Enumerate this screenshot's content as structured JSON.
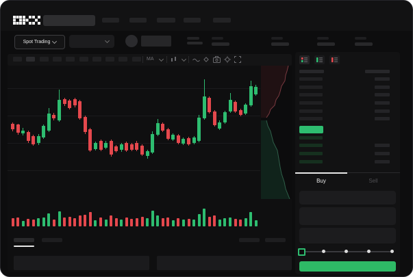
{
  "brand": {
    "logo_label": "OKX"
  },
  "colors": {
    "up_green": "#2ebd70",
    "down_red": "#e5484d",
    "buy_button_green": "#2eba66",
    "last_price_green": "#2ebd70",
    "panel_bg": "#131314",
    "accent_underline": "#e8e8e8"
  },
  "topbar": {
    "nav_placeholder_count": 5
  },
  "subheader": {
    "market_selector_label": "Spot Trading",
    "stat_group_count": 4
  },
  "chart_toolbar": {
    "timeframe_placeholder_count": 10,
    "ma_label": "MA",
    "icons": [
      "ma-dropdown",
      "candle-style-dropdown",
      "line-tool-icon",
      "draw-tool-icon",
      "camera-icon",
      "settings-icon",
      "fullscreen-icon"
    ]
  },
  "chart_data": {
    "type": "candlestick",
    "note": "No numeric axis labels visible; candle values normalized as percent from chart top (0=top, 100=bottom).",
    "up_color": "#2ebd70",
    "down_color": "#e5484d",
    "gridlines_pct": [
      16.5,
      36.5,
      56.5,
      76.5
    ],
    "candles": [
      {
        "o": 42.5,
        "c": 46.7,
        "h": 41.7,
        "l": 47.8,
        "dir": "down"
      },
      {
        "o": 43.0,
        "c": 49.2,
        "h": 42.5,
        "l": 50.5,
        "dir": "down"
      },
      {
        "o": 49.5,
        "c": 47.5,
        "h": 45.3,
        "l": 50.8,
        "dir": "up"
      },
      {
        "o": 48.7,
        "c": 55.0,
        "h": 47.5,
        "l": 56.5,
        "dir": "down"
      },
      {
        "o": 51.7,
        "c": 57.5,
        "h": 50.5,
        "l": 58.7,
        "dir": "down"
      },
      {
        "o": 56.5,
        "c": 51.5,
        "h": 50.0,
        "l": 58.0,
        "dir": "up"
      },
      {
        "o": 52.5,
        "c": 44.2,
        "h": 43.0,
        "l": 53.5,
        "dir": "up"
      },
      {
        "o": 47.5,
        "c": 35.0,
        "h": 30.8,
        "l": 48.5,
        "dir": "up"
      },
      {
        "o": 35.8,
        "c": 38.7,
        "h": 34.5,
        "l": 40.0,
        "dir": "down"
      },
      {
        "o": 40.0,
        "c": 25.0,
        "h": 17.5,
        "l": 41.0,
        "dir": "up"
      },
      {
        "o": 24.7,
        "c": 28.0,
        "h": 23.5,
        "l": 29.5,
        "dir": "down"
      },
      {
        "o": 25.3,
        "c": 30.8,
        "h": 24.5,
        "l": 32.0,
        "dir": "down"
      },
      {
        "o": 24.7,
        "c": 29.2,
        "h": 23.3,
        "l": 30.5,
        "dir": "down"
      },
      {
        "o": 25.8,
        "c": 38.3,
        "h": 25.0,
        "l": 39.5,
        "dir": "down"
      },
      {
        "o": 37.5,
        "c": 48.7,
        "h": 36.5,
        "l": 50.0,
        "dir": "down"
      },
      {
        "o": 46.7,
        "c": 62.0,
        "h": 45.5,
        "l": 63.0,
        "dir": "down"
      },
      {
        "o": 60.8,
        "c": 56.7,
        "h": 55.5,
        "l": 62.0,
        "dir": "up"
      },
      {
        "o": 55.0,
        "c": 61.3,
        "h": 54.0,
        "l": 62.5,
        "dir": "down"
      },
      {
        "o": 60.0,
        "c": 56.3,
        "h": 55.0,
        "l": 61.0,
        "dir": "up"
      },
      {
        "o": 55.0,
        "c": 65.0,
        "h": 54.0,
        "l": 66.5,
        "dir": "down"
      },
      {
        "o": 59.2,
        "c": 62.5,
        "h": 58.0,
        "l": 63.5,
        "dir": "down"
      },
      {
        "o": 61.7,
        "c": 57.5,
        "h": 56.5,
        "l": 63.0,
        "dir": "up"
      },
      {
        "o": 56.7,
        "c": 62.0,
        "h": 55.5,
        "l": 63.0,
        "dir": "down"
      },
      {
        "o": 57.5,
        "c": 61.3,
        "h": 56.5,
        "l": 62.3,
        "dir": "down"
      },
      {
        "o": 56.3,
        "c": 61.7,
        "h": 55.0,
        "l": 62.7,
        "dir": "down"
      },
      {
        "o": 58.7,
        "c": 65.0,
        "h": 57.5,
        "l": 66.0,
        "dir": "down"
      },
      {
        "o": 66.0,
        "c": 62.5,
        "h": 61.5,
        "l": 68.0,
        "dir": "up"
      },
      {
        "o": 63.5,
        "c": 50.0,
        "h": 48.0,
        "l": 64.5,
        "dir": "up"
      },
      {
        "o": 50.5,
        "c": 42.0,
        "h": 39.0,
        "l": 51.5,
        "dir": "up"
      },
      {
        "o": 42.5,
        "c": 47.5,
        "h": 41.5,
        "l": 48.5,
        "dir": "down"
      },
      {
        "o": 46.5,
        "c": 53.5,
        "h": 45.5,
        "l": 54.5,
        "dir": "down"
      },
      {
        "o": 54.0,
        "c": 50.5,
        "h": 49.5,
        "l": 55.0,
        "dir": "up"
      },
      {
        "o": 51.0,
        "c": 56.5,
        "h": 50.0,
        "l": 57.5,
        "dir": "down"
      },
      {
        "o": 57.0,
        "c": 53.5,
        "h": 52.5,
        "l": 58.0,
        "dir": "up"
      },
      {
        "o": 53.0,
        "c": 57.5,
        "h": 52.0,
        "l": 58.5,
        "dir": "down"
      },
      {
        "o": 56.5,
        "c": 52.5,
        "h": 51.5,
        "l": 57.5,
        "dir": "up"
      },
      {
        "o": 55.0,
        "c": 38.0,
        "h": 36.0,
        "l": 56.0,
        "dir": "up"
      },
      {
        "o": 38.5,
        "c": 22.5,
        "h": 10.0,
        "l": 39.5,
        "dir": "up"
      },
      {
        "o": 23.5,
        "c": 34.0,
        "h": 22.5,
        "l": 35.0,
        "dir": "down"
      },
      {
        "o": 33.5,
        "c": 43.5,
        "h": 32.5,
        "l": 44.5,
        "dir": "down"
      },
      {
        "o": 46.0,
        "c": 41.5,
        "h": 40.0,
        "l": 47.0,
        "dir": "up"
      },
      {
        "o": 41.5,
        "c": 34.0,
        "h": 33.0,
        "l": 42.5,
        "dir": "up"
      },
      {
        "o": 33.5,
        "c": 25.0,
        "h": 20.0,
        "l": 34.5,
        "dir": "up"
      },
      {
        "o": 26.5,
        "c": 33.5,
        "h": 25.5,
        "l": 34.5,
        "dir": "down"
      },
      {
        "o": 32.5,
        "c": 36.0,
        "h": 31.5,
        "l": 37.0,
        "dir": "down"
      },
      {
        "o": 35.0,
        "c": 28.5,
        "h": 27.5,
        "l": 36.0,
        "dir": "up"
      },
      {
        "o": 29.0,
        "c": 15.0,
        "h": 11.0,
        "l": 30.0,
        "dir": "up"
      },
      {
        "o": 21.0,
        "c": 15.5,
        "h": 14.0,
        "l": 22.0,
        "dir": "up"
      }
    ],
    "volume": [
      0.45,
      0.5,
      0.3,
      0.42,
      0.38,
      0.45,
      0.5,
      0.75,
      0.4,
      0.85,
      0.5,
      0.55,
      0.45,
      0.6,
      0.65,
      0.8,
      0.35,
      0.5,
      0.4,
      0.6,
      0.45,
      0.4,
      0.5,
      0.42,
      0.48,
      0.55,
      0.45,
      0.9,
      0.6,
      0.45,
      0.5,
      0.35,
      0.45,
      0.4,
      0.42,
      0.38,
      0.7,
      1.0,
      0.55,
      0.6,
      0.4,
      0.45,
      0.5,
      0.42,
      0.38,
      0.45,
      0.8,
      0.35
    ],
    "depth_overlay": {
      "asks_side": "top-red",
      "bids_side": "bottom-green"
    }
  },
  "order_book": {
    "view_toggles": [
      {
        "name": "book-both",
        "active": true
      },
      {
        "name": "book-bids-only",
        "active": false
      },
      {
        "name": "book-asks-only",
        "active": false
      }
    ],
    "ask_row_count": 6,
    "bid_row_count": 4,
    "has_last_price_highlight": true
  },
  "trade_panel": {
    "tabs": [
      {
        "label": "Buy",
        "active": true
      },
      {
        "label": "Sell",
        "active": false
      }
    ],
    "input_placeholder_count": 3,
    "slider_stop_count": 5,
    "slider_value_index": 0,
    "submit_button_label": ""
  },
  "bottom_panel": {
    "tab_placeholder_count": 2,
    "right_action_placeholder_count": 2,
    "table_placeholder_count": 2
  }
}
